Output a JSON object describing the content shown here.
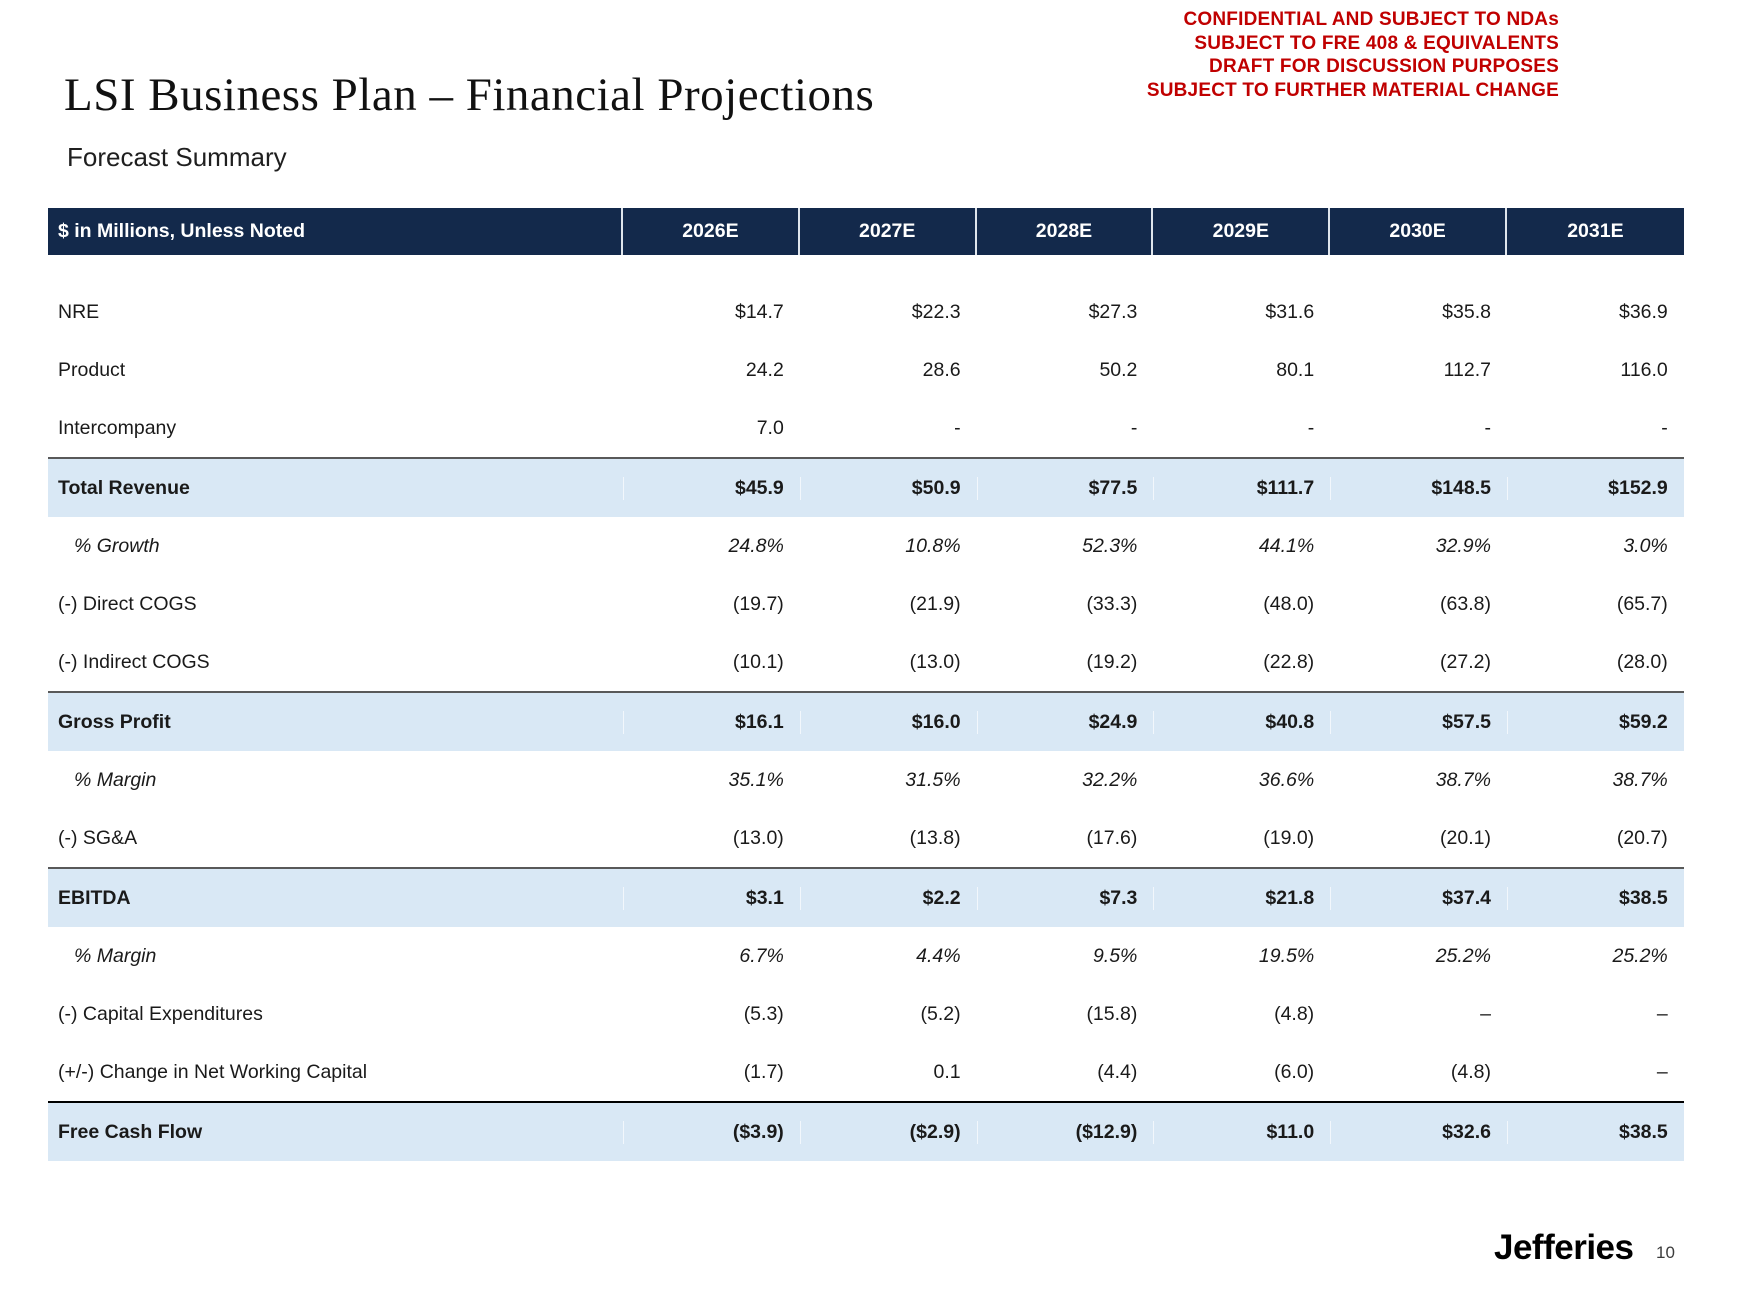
{
  "page": {
    "title": "LSI Business Plan – Financial Projections",
    "subtitle": "Forecast Summary",
    "disclaimer_lines": [
      "CONFIDENTIAL AND SUBJECT TO NDAs",
      "SUBJECT TO FRE 408 & EQUIVALENTS",
      "DRAFT FOR DISCUSSION PURPOSES",
      "SUBJECT TO FURTHER MATERIAL CHANGE"
    ],
    "footer": {
      "brand": "Jefferies",
      "page_number": "10"
    }
  },
  "colors": {
    "header_navy": "#13294B",
    "highlight_blue": "#D9E8F5",
    "disclaimer_red": "#C00000",
    "total_border_gray": "#595959",
    "fcf_border_black": "#000000"
  },
  "table": {
    "header": {
      "label": "$ in Millions, Unless Noted",
      "columns": [
        "2026E",
        "2027E",
        "2028E",
        "2029E",
        "2030E",
        "2031E"
      ]
    },
    "rows": [
      {
        "label": "NRE",
        "style": "normal",
        "values": [
          "$14.7",
          "$22.3",
          "$27.3",
          "$31.6",
          "$35.8",
          "$36.9"
        ]
      },
      {
        "label": "Product",
        "style": "normal",
        "values": [
          "24.2",
          "28.6",
          "50.2",
          "80.1",
          "112.7",
          "116.0"
        ]
      },
      {
        "label": "Intercompany",
        "style": "normal",
        "values": [
          "7.0",
          "-",
          "-",
          "-",
          "-",
          "-"
        ]
      },
      {
        "label": "Total Revenue",
        "style": "total",
        "values": [
          "$45.9",
          "$50.9",
          "$77.5",
          "$111.7",
          "$148.5",
          "$152.9"
        ]
      },
      {
        "label": "% Growth",
        "style": "pct",
        "values": [
          "24.8%",
          "10.8%",
          "52.3%",
          "44.1%",
          "32.9%",
          "3.0%"
        ]
      },
      {
        "label": "(-) Direct COGS",
        "style": "normal",
        "values": [
          "(19.7)",
          "(21.9)",
          "(33.3)",
          "(48.0)",
          "(63.8)",
          "(65.7)"
        ]
      },
      {
        "label": "(-) Indirect COGS",
        "style": "normal",
        "values": [
          "(10.1)",
          "(13.0)",
          "(19.2)",
          "(22.8)",
          "(27.2)",
          "(28.0)"
        ]
      },
      {
        "label": "Gross Profit",
        "style": "total",
        "values": [
          "$16.1",
          "$16.0",
          "$24.9",
          "$40.8",
          "$57.5",
          "$59.2"
        ]
      },
      {
        "label": "% Margin",
        "style": "pct",
        "values": [
          "35.1%",
          "31.5%",
          "32.2%",
          "36.6%",
          "38.7%",
          "38.7%"
        ]
      },
      {
        "label": "(-) SG&A",
        "style": "normal",
        "values": [
          "(13.0)",
          "(13.8)",
          "(17.6)",
          "(19.0)",
          "(20.1)",
          "(20.7)"
        ]
      },
      {
        "label": "EBITDA",
        "style": "total",
        "values": [
          "$3.1",
          "$2.2",
          "$7.3",
          "$21.8",
          "$37.4",
          "$38.5"
        ]
      },
      {
        "label": "% Margin",
        "style": "pct",
        "values": [
          "6.7%",
          "4.4%",
          "9.5%",
          "19.5%",
          "25.2%",
          "25.2%"
        ]
      },
      {
        "label": "(-) Capital Expenditures",
        "style": "normal",
        "values": [
          "(5.3)",
          "(5.2)",
          "(15.8)",
          "(4.8)",
          "–",
          "–"
        ]
      },
      {
        "label": "(+/-) Change in Net Working Capital",
        "style": "normal",
        "values": [
          "(1.7)",
          "0.1",
          "(4.4)",
          "(6.0)",
          "(4.8)",
          "–"
        ]
      },
      {
        "label": "Free Cash Flow",
        "style": "fcf",
        "values": [
          "($3.9)",
          "($2.9)",
          "($12.9)",
          "$11.0",
          "$32.6",
          "$38.5"
        ]
      }
    ]
  }
}
